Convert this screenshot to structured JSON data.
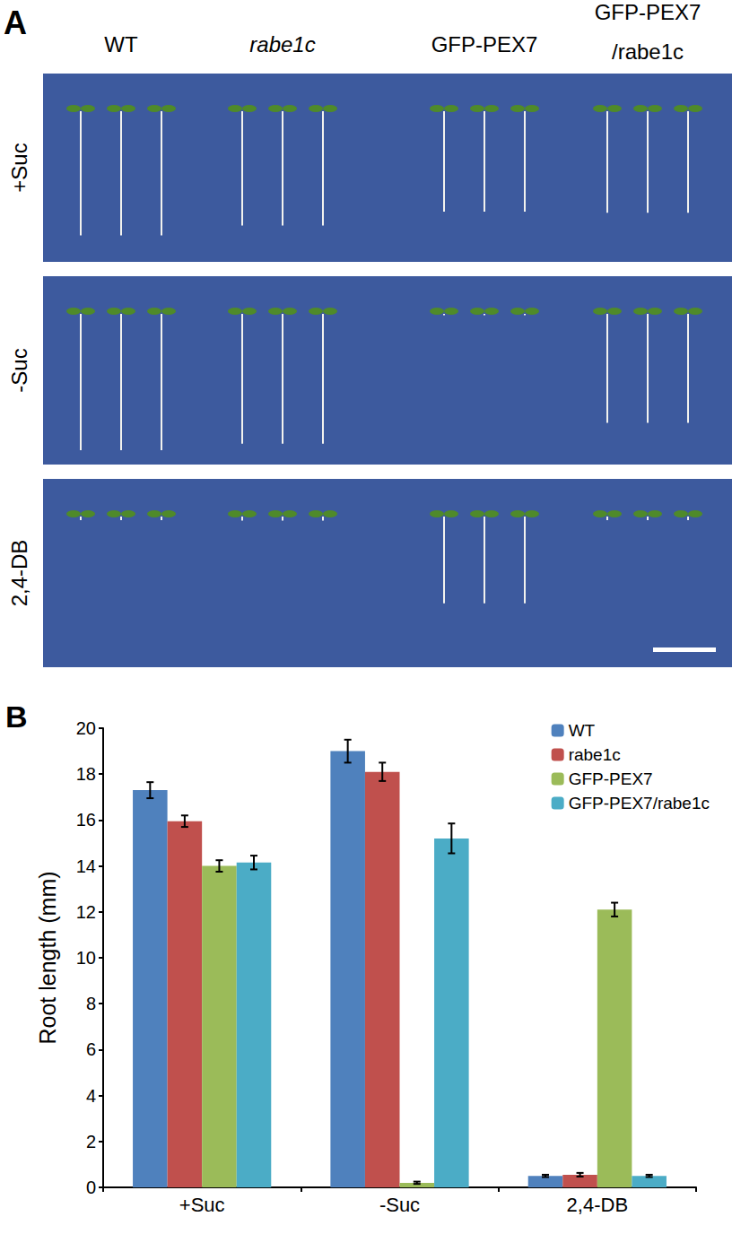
{
  "figure": {
    "panel_a": {
      "label": "A",
      "columns": [
        [
          "WT"
        ],
        [
          "rabe1c"
        ],
        [
          "GFP-PEX7"
        ],
        [
          "GFP-PEX7",
          "/rabe1c"
        ]
      ],
      "rows": [
        "+Suc",
        "-Suc",
        "2,4-DB"
      ]
    },
    "panel_b": {
      "label": "B"
    }
  },
  "chart_data": {
    "type": "bar",
    "categories": [
      "+Suc",
      "-Suc",
      "2,4-DB"
    ],
    "y_label": "Root length (mm)",
    "ylim": [
      0,
      20
    ],
    "yticks": [
      0,
      2,
      4,
      6,
      8,
      10,
      12,
      14,
      16,
      18,
      20
    ],
    "grid": false,
    "legend": "upper right",
    "series": [
      {
        "name": "WT",
        "color": "#4F81BD",
        "values": [
          17.3,
          19.0,
          0.5
        ],
        "errors": [
          0.35,
          0.5,
          0.05
        ]
      },
      {
        "name": "rabe1c",
        "color": "#C0504D",
        "values": [
          15.95,
          18.1,
          0.55
        ],
        "errors": [
          0.25,
          0.4,
          0.08
        ]
      },
      {
        "name": "GFP-PEX7",
        "color": "#9BBB59",
        "values": [
          14.0,
          0.2,
          12.1
        ],
        "errors": [
          0.25,
          0.05,
          0.3
        ]
      },
      {
        "name": "GFP-PEX7/rabe1c",
        "color": "#4BACC6",
        "values": [
          14.15,
          15.2,
          0.5
        ],
        "errors": [
          0.3,
          0.65,
          0.05
        ]
      }
    ]
  }
}
